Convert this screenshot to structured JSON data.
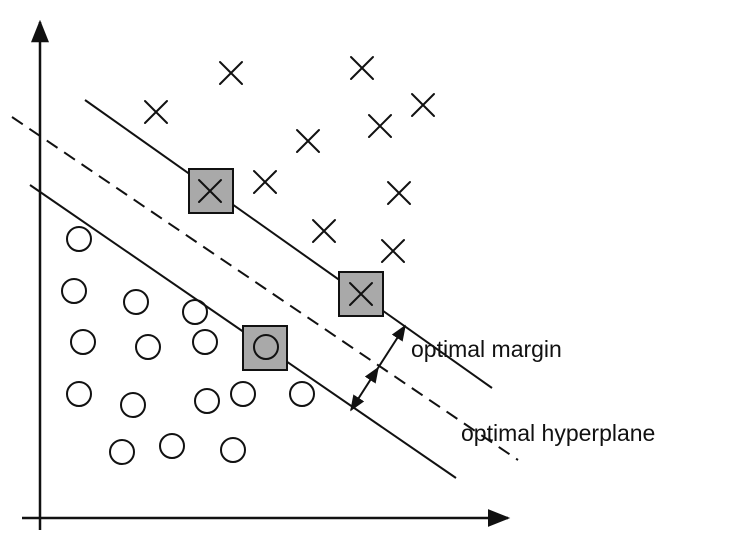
{
  "labels": {
    "margin": "optimal margin",
    "hyperplane": "optimal hyperplane"
  },
  "colors": {
    "ink": "#111111",
    "support_vector_fill": "#a9a9a9"
  },
  "classes": {
    "positive_marker": "x-mark",
    "negative_marker": "circle-mark",
    "support_vector_marker": "shaded-square"
  }
}
